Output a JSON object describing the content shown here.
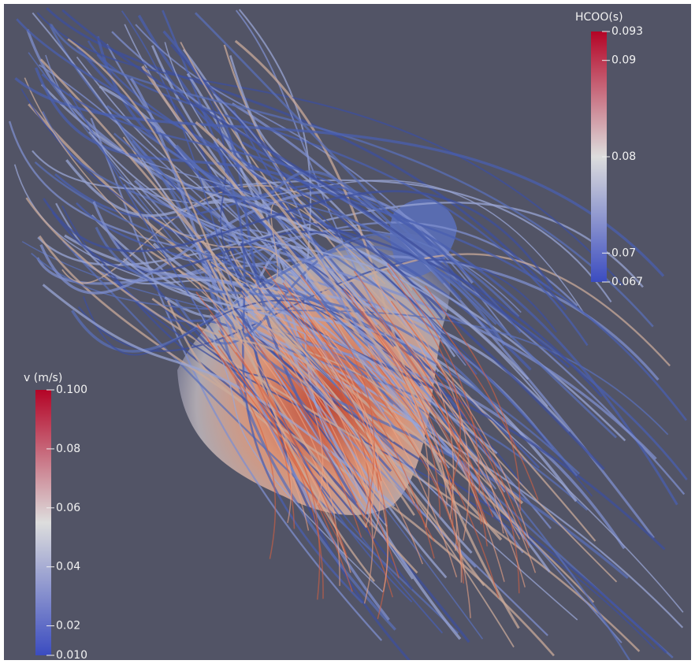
{
  "chart_data": [
    {
      "type": "colorbar",
      "title": "HCOO(s)",
      "colormap": [
        "#3b4cc0",
        "#dddddd",
        "#b40426"
      ],
      "ylim": [
        0.067,
        0.093
      ],
      "yticks": [
        0.067,
        0.07,
        0.08,
        0.09,
        0.093
      ]
    },
    {
      "type": "colorbar",
      "title": "v (m/s)",
      "colormap": [
        "#3b4cc0",
        "#dddddd",
        "#b40426"
      ],
      "ylim": [
        0.01,
        0.1
      ],
      "yticks": [
        {
          "value": 0.01,
          "label": "0.010"
        },
        0.02,
        0.04,
        0.06,
        0.08,
        {
          "value": 0.1,
          "label": "0.100"
        }
      ]
    }
  ]
}
